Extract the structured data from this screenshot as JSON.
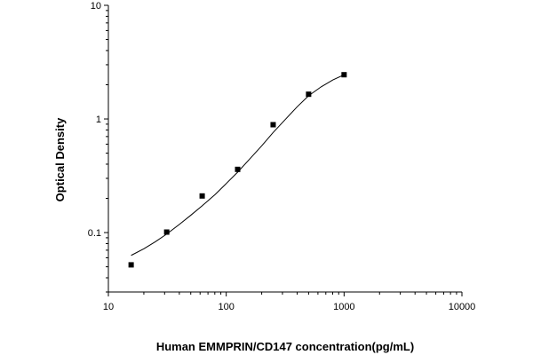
{
  "chart_data": {
    "type": "scatter",
    "xlabel": "Human EMMPRIN/CD147 concentration(pg/mL)",
    "ylabel": "Optical Density",
    "xscale": "log",
    "yscale": "log",
    "xlim": [
      10,
      10000
    ],
    "ylim": [
      0.03,
      10
    ],
    "x_ticks": [
      10,
      100,
      1000,
      10000
    ],
    "x_tick_labels": [
      "10",
      "100",
      "1000",
      "10000"
    ],
    "y_ticks": [
      0.1,
      1,
      10
    ],
    "y_tick_labels": [
      "0.1",
      "1",
      "10"
    ],
    "grid": false,
    "series": [
      {
        "x": [
          15.6,
          31.25,
          62.5,
          125,
          250,
          500,
          1000
        ],
        "y": [
          0.052,
          0.101,
          0.21,
          0.36,
          0.89,
          1.65,
          2.45
        ],
        "marker": "square",
        "color": "#000000"
      }
    ],
    "fit_curve": {
      "x": [
        15.6,
        20,
        25,
        31.25,
        40,
        50,
        62.5,
        80,
        100,
        125,
        160,
        200,
        250,
        320,
        400,
        500,
        640,
        800,
        1000
      ],
      "y": [
        0.063,
        0.072,
        0.083,
        0.097,
        0.118,
        0.142,
        0.172,
        0.215,
        0.27,
        0.34,
        0.45,
        0.58,
        0.76,
        1.0,
        1.28,
        1.6,
        1.92,
        2.2,
        2.45
      ],
      "color": "#000000"
    }
  }
}
